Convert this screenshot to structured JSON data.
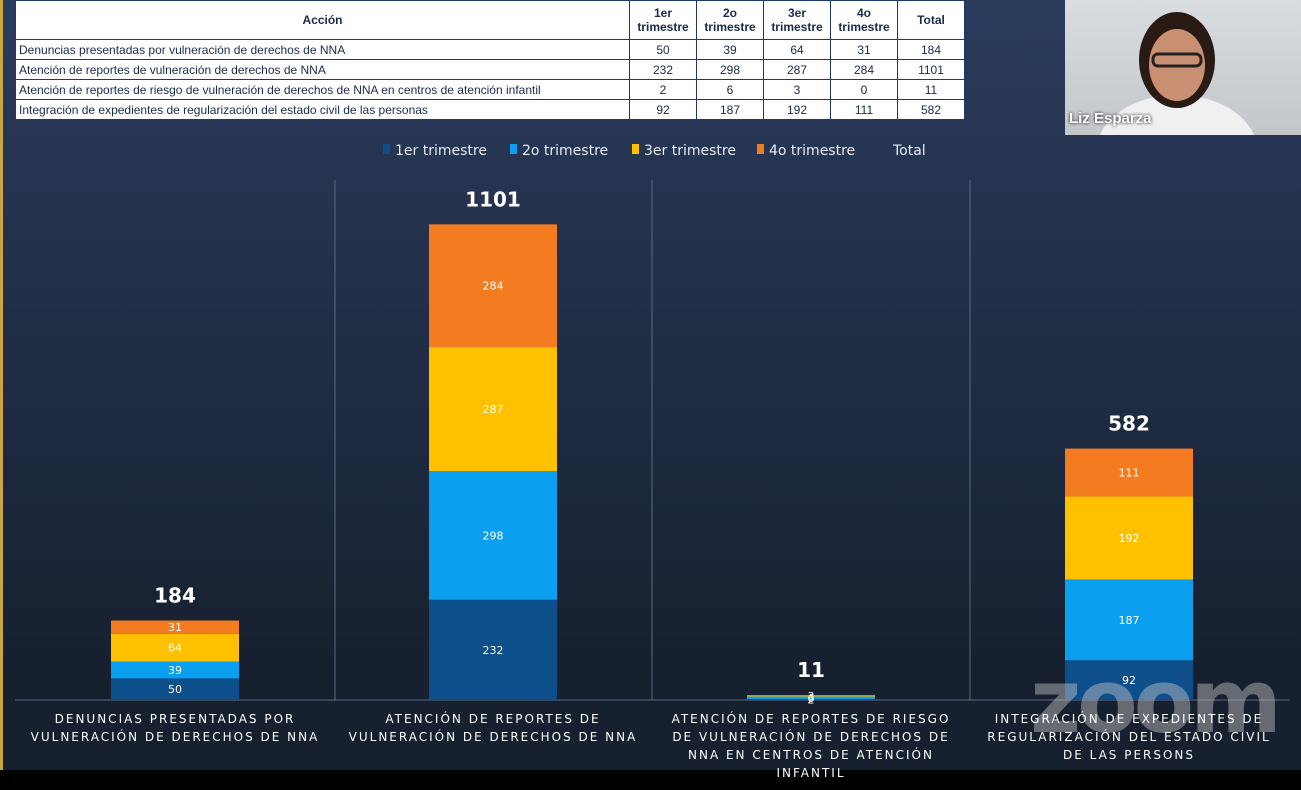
{
  "table": {
    "header": [
      "Acción",
      "1er trimestre",
      "2o trimestre",
      "3er trimestre",
      "4o trimestre",
      "Total"
    ],
    "rows": [
      [
        "Denuncias presentadas por vulneración de derechos de NNA",
        50,
        39,
        64,
        31,
        184
      ],
      [
        "Atención de reportes de vulneración de derechos de NNA",
        232,
        298,
        287,
        284,
        1101
      ],
      [
        "Atención de reportes de riesgo de vulneración de derechos de NNA en centros de atención infantil",
        2,
        6,
        3,
        0,
        11
      ],
      [
        "Integración de expedientes de regularización del estado civil de las personas",
        92,
        187,
        192,
        111,
        582
      ]
    ]
  },
  "chart_data": {
    "type": "stacked_bar",
    "categories": [
      "DENUNCIAS PRESENTADAS POR VULNERACIÓN DE DERECHOS DE NNA",
      "ATENCIÓN DE REPORTES DE VULNERACIÓN DE DERECHOS DE NNA",
      "ATENCIÓN DE REPORTES DE RIESGO DE VULNERACIÓN DE DERECHOS DE NNA EN CENTROS DE ATENCIÓN INFANTIL",
      "INTEGRACIÓN DE EXPEDIENTES DE REGULARIZACIÓN DEL ESTADO CIVIL DE LAS PERSONS"
    ],
    "series": [
      {
        "name": "1er trimestre",
        "color": "#0d4f8b",
        "values": [
          50,
          232,
          2,
          92
        ]
      },
      {
        "name": "2o trimestre",
        "color": "#0aa0ef",
        "values": [
          39,
          298,
          6,
          187
        ]
      },
      {
        "name": "3er trimestre",
        "color": "#ffc000",
        "values": [
          64,
          287,
          3,
          192
        ]
      },
      {
        "name": "4o trimestre",
        "color": "#f47c20",
        "values": [
          31,
          284,
          0,
          111
        ]
      },
      {
        "name": "Total",
        "values": [
          184,
          1101,
          11,
          582
        ]
      }
    ]
  },
  "video": {
    "participant": "Liz Esparza",
    "watermark": "zoom"
  }
}
